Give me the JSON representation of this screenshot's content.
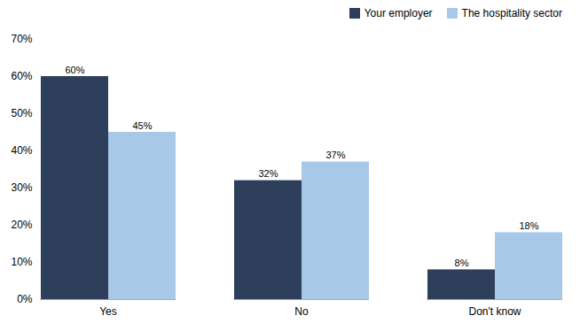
{
  "chart_data": {
    "type": "bar",
    "categories": [
      "Yes",
      "No",
      "Don't know"
    ],
    "series": [
      {
        "name": "Your employer",
        "color": "#2E3F5C",
        "values": [
          60,
          32,
          8
        ],
        "value_labels": [
          "60%",
          "32%",
          "8%"
        ]
      },
      {
        "name": "The hospitality sector",
        "color": "#A8C8E8",
        "values": [
          45,
          37,
          18
        ],
        "value_labels": [
          "45%",
          "37%",
          "18%"
        ]
      }
    ],
    "ylim": [
      0,
      70
    ],
    "yticks": [
      {
        "value": 0,
        "label": "0%"
      },
      {
        "value": 10,
        "label": "10%"
      },
      {
        "value": 20,
        "label": "20%"
      },
      {
        "value": 30,
        "label": "30%"
      },
      {
        "value": 40,
        "label": "40%"
      },
      {
        "value": 50,
        "label": "50%"
      },
      {
        "value": 60,
        "label": "60%"
      },
      {
        "value": 70,
        "label": "70%"
      }
    ],
    "grid": false,
    "legend": "upper right",
    "data_labels": true
  }
}
